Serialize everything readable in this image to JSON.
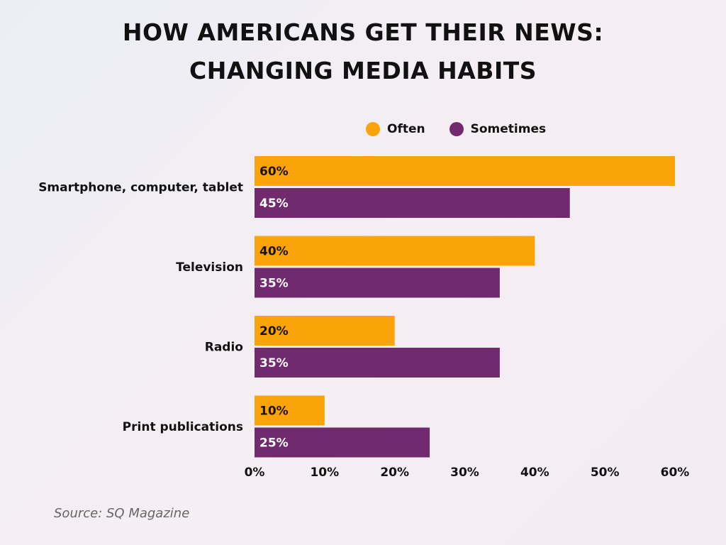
{
  "chart_data": {
    "type": "bar",
    "orientation": "horizontal",
    "title": [
      "HOW AMERICANS GET THEIR NEWS:",
      "CHANGING MEDIA HABITS"
    ],
    "categories": [
      "Smartphone, computer, tablet",
      "Television",
      "Radio",
      "Print publications"
    ],
    "series": [
      {
        "name": "Often",
        "values": [
          60,
          40,
          20,
          10
        ],
        "color": "#FBA40A"
      },
      {
        "name": "Sometimes",
        "values": [
          45,
          35,
          35,
          25
        ],
        "color": "#722A6E"
      }
    ],
    "xlim": [
      0,
      60
    ],
    "xticks": [
      "0%",
      "10%",
      "20%",
      "30%",
      "40%",
      "50%",
      "60%"
    ],
    "value_suffix": "%",
    "legend": "top",
    "grid": false,
    "source": "Source: SQ Magazine"
  }
}
